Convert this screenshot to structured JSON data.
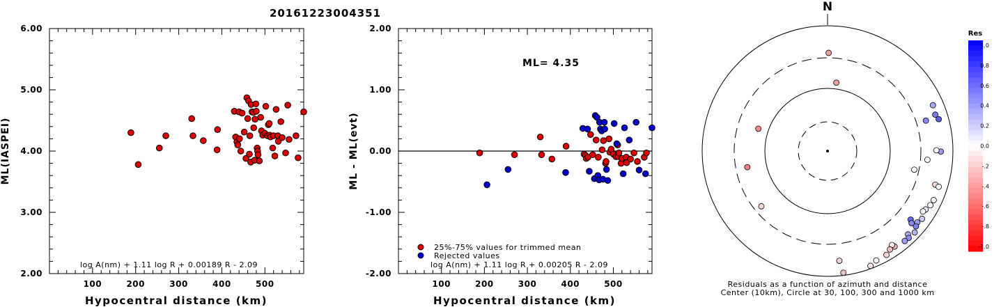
{
  "figure_title": "20161223004351",
  "chart_data": [
    {
      "type": "scatter",
      "ylabel": "ML(IASPEI)",
      "xlabel": "Hypocentral distance (km)",
      "xlim": [
        0,
        590
      ],
      "ylim": [
        2.0,
        6.0
      ],
      "xticks": [
        "100",
        "200",
        "300",
        "400",
        "500"
      ],
      "yticks": [
        "2.00",
        "3.00",
        "4.00",
        "5.00",
        "6.00"
      ],
      "formula": "log A(nm) + 1.11 log R + 0.00189 R - 2.09",
      "point_color": "#dd0000",
      "points": [
        [
          189,
          4.3
        ],
        [
          206,
          3.78
        ],
        [
          255,
          4.05
        ],
        [
          270,
          4.25
        ],
        [
          330,
          4.53
        ],
        [
          333,
          4.25
        ],
        [
          357,
          4.17
        ],
        [
          389,
          4.02
        ],
        [
          390,
          4.35
        ],
        [
          429,
          4.65
        ],
        [
          432,
          4.23
        ],
        [
          435,
          4.15
        ],
        [
          437,
          4.1
        ],
        [
          440,
          4.64
        ],
        [
          441,
          4.2
        ],
        [
          444,
          4.0
        ],
        [
          447,
          4.62
        ],
        [
          452,
          4.31
        ],
        [
          456,
          3.88
        ],
        [
          458,
          4.87
        ],
        [
          460,
          4.53
        ],
        [
          462,
          4.82
        ],
        [
          464,
          3.95
        ],
        [
          465,
          4.25
        ],
        [
          467,
          3.82
        ],
        [
          468,
          4.76
        ],
        [
          470,
          4.64
        ],
        [
          473,
          4.63
        ],
        [
          474,
          4.38
        ],
        [
          476,
          3.85
        ],
        [
          477,
          4.52
        ],
        [
          479,
          4.77
        ],
        [
          480,
          4.65
        ],
        [
          482,
          4.05
        ],
        [
          483,
          4.0
        ],
        [
          484,
          3.94
        ],
        [
          487,
          3.84
        ],
        [
          490,
          4.55
        ],
        [
          492,
          4.33
        ],
        [
          495,
          4.26
        ],
        [
          500,
          4.29
        ],
        [
          502,
          4.73
        ],
        [
          506,
          4.25
        ],
        [
          508,
          4.43
        ],
        [
          510,
          4.45
        ],
        [
          511,
          4.26
        ],
        [
          513,
          4.23
        ],
        [
          518,
          4.05
        ],
        [
          520,
          4.25
        ],
        [
          523,
          3.92
        ],
        [
          526,
          4.68
        ],
        [
          530,
          4.25
        ],
        [
          531,
          4.16
        ],
        [
          537,
          4.48
        ],
        [
          540,
          4.22
        ],
        [
          548,
          3.97
        ],
        [
          553,
          4.75
        ],
        [
          556,
          4.19
        ],
        [
          572,
          4.25
        ],
        [
          577,
          3.89
        ],
        [
          590,
          4.64
        ]
      ]
    },
    {
      "type": "scatter",
      "ylabel": "ML - ML(evt)",
      "xlabel": "Hypocentral distance (km)",
      "xlim": [
        0,
        590
      ],
      "ylim": [
        -2.0,
        2.0
      ],
      "xticks": [
        "100",
        "200",
        "300",
        "400",
        "500"
      ],
      "yticks": [
        "-2.00",
        "-1.00",
        "0.00",
        "1.00",
        "2.00"
      ],
      "annotation": "ML= 4.35",
      "formula": "log A(nm) + 1.11 log R + 0.00205 R - 2.09",
      "legend": [
        {
          "label": "25%-75% values for trimmed mean",
          "color": "#dd0000"
        },
        {
          "label": "Rejected values",
          "color": "#0000cc"
        }
      ],
      "red_points": [
        [
          189,
          -0.03
        ],
        [
          270,
          -0.06
        ],
        [
          330,
          0.23
        ],
        [
          333,
          -0.06
        ],
        [
          357,
          -0.13
        ],
        [
          390,
          0.08
        ],
        [
          432,
          -0.05
        ],
        [
          435,
          -0.07
        ],
        [
          437,
          -0.12
        ],
        [
          441,
          -0.1
        ],
        [
          447,
          0.27
        ],
        [
          452,
          -0.06
        ],
        [
          460,
          0.18
        ],
        [
          465,
          -0.1
        ],
        [
          474,
          0.02
        ],
        [
          477,
          0.17
        ],
        [
          482,
          -0.2
        ],
        [
          483,
          -0.17
        ],
        [
          490,
          0.2
        ],
        [
          492,
          -0.02
        ],
        [
          495,
          0.03
        ],
        [
          500,
          -0.05
        ],
        [
          506,
          -0.09
        ],
        [
          510,
          0.1
        ],
        [
          511,
          -0.09
        ],
        [
          513,
          -0.03
        ],
        [
          518,
          -0.2
        ],
        [
          520,
          -0.12
        ],
        [
          530,
          -0.1
        ],
        [
          531,
          -0.19
        ],
        [
          540,
          -0.13
        ],
        [
          548,
          -0.03
        ],
        [
          556,
          -0.17
        ],
        [
          572,
          -0.1
        ],
        [
          577,
          -0.03
        ]
      ],
      "blue_points": [
        [
          206,
          -0.55
        ],
        [
          255,
          -0.3
        ],
        [
          389,
          -0.35
        ],
        [
          429,
          0.37
        ],
        [
          440,
          0.36
        ],
        [
          444,
          -0.33
        ],
        [
          456,
          -0.45
        ],
        [
          458,
          0.58
        ],
        [
          462,
          0.55
        ],
        [
          464,
          -0.4
        ],
        [
          467,
          -0.47
        ],
        [
          468,
          0.47
        ],
        [
          470,
          0.36
        ],
        [
          473,
          0.33
        ],
        [
          476,
          -0.46
        ],
        [
          479,
          0.47
        ],
        [
          480,
          0.36
        ],
        [
          484,
          -0.3
        ],
        [
          487,
          -0.48
        ],
        [
          502,
          0.45
        ],
        [
          508,
          0.12
        ],
        [
          523,
          -0.37
        ],
        [
          526,
          0.38
        ],
        [
          537,
          0.18
        ],
        [
          553,
          0.47
        ],
        [
          560,
          -0.31
        ],
        [
          575,
          -0.37
        ],
        [
          590,
          0.38
        ]
      ]
    },
    {
      "type": "scatter",
      "title": "N",
      "caption_line1": "Residuals as a function of azimuth and distance",
      "caption_line2": "Center (10km), Circle at 30, 100, 300 and 1000 km",
      "colorbar_title": "Res",
      "colorbar_ticks": [
        "1.0",
        "0.8",
        "0.6",
        "0.4",
        "0.2",
        "0.0",
        "-.2",
        "-.4",
        "-.6",
        "-.8",
        "-1.0"
      ],
      "polar_points_xy_km": [
        [
          12,
          1097
        ],
        [
          98,
          764
        ],
        [
          -773,
          250
        ],
        [
          -896,
          -180
        ],
        [
          -739,
          -617
        ],
        [
          1098,
          340
        ],
        [
          1177,
          512
        ],
        [
          1203,
          407
        ],
        [
          1241,
          357
        ],
        [
          1265,
          -6
        ],
        [
          1215,
          9
        ],
        [
          1115,
          -97
        ],
        [
          968,
          -208
        ],
        [
          1203,
          -375
        ],
        [
          1241,
          -399
        ],
        [
          1185,
          -548
        ],
        [
          1148,
          -605
        ],
        [
          1095,
          -652
        ],
        [
          1065,
          -674
        ],
        [
          1055,
          -757
        ],
        [
          1002,
          -796
        ],
        [
          987,
          -841
        ],
        [
          928,
          -766
        ],
        [
          938,
          -805
        ],
        [
          973,
          -909
        ],
        [
          898,
          -931
        ],
        [
          907,
          -970
        ],
        [
          862,
          -1004
        ],
        [
          749,
          -1067
        ],
        [
          719,
          -1049
        ],
        [
          697,
          -1099
        ],
        [
          658,
          -1160
        ],
        [
          544,
          -1222
        ],
        [
          479,
          -1283
        ],
        [
          177,
          -1359
        ],
        [
          132,
          -1226
        ]
      ],
      "polar_point_colors": [
        "#f0a0a0",
        "#f0a0a0",
        "#f08a8a",
        "#ee8080",
        "#f8d8d8",
        "#8888ee",
        "#aaaaf0",
        "#7a7aea",
        "#5f5fe6",
        "#9a9aee",
        "#ffffff",
        "#ffffff",
        "#ffffff",
        "#f8d8d8",
        "#ffffff",
        "#ffffff",
        "#ffffff",
        "#e8e8fc",
        "#ffffff",
        "#ccccf6",
        "#9c9cee",
        "#8080ea",
        "#6a6ae8",
        "#8888ee",
        "#b4b4f2",
        "#aaaaf0",
        "#8c8cee",
        "#a0a0f0",
        "#f0b0b0",
        "#fce8e8",
        "#f4c0c0",
        "#f8d4d4",
        "#ffffff",
        "#fce8e8",
        "#f4c0c0",
        "#f8d0d0"
      ]
    }
  ]
}
